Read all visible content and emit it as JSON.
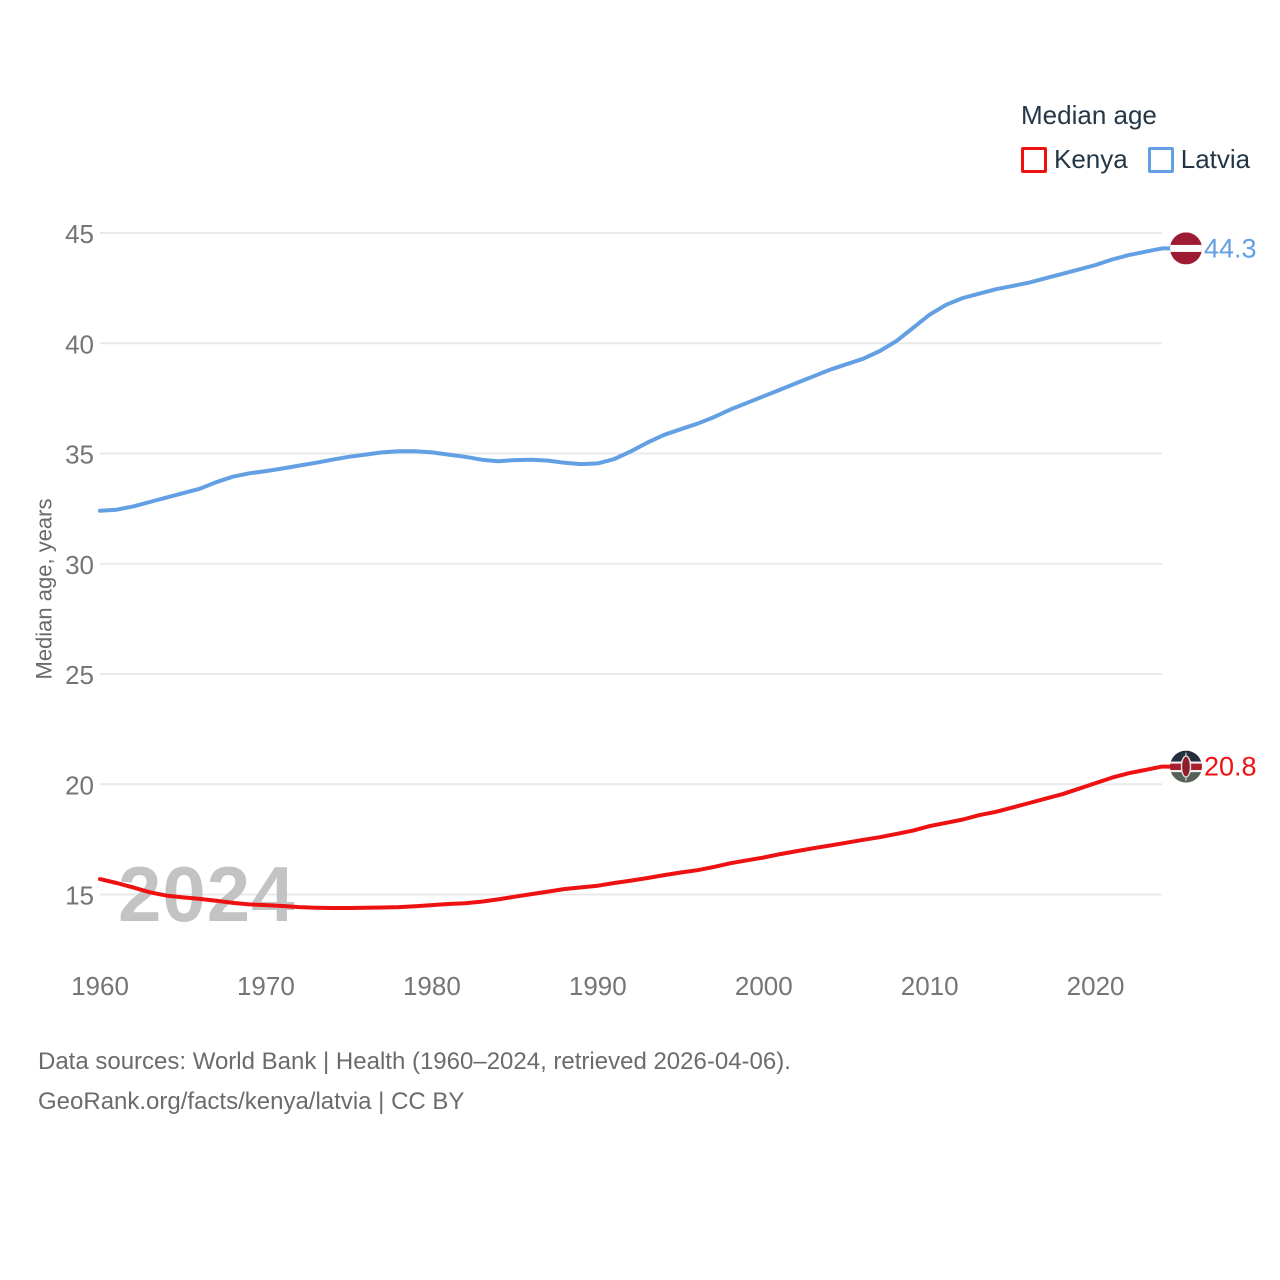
{
  "legend": {
    "title": "Median age",
    "items": [
      {
        "label": "Kenya",
        "color": "#ee1111"
      },
      {
        "label": "Latvia",
        "color": "#63a0e3"
      }
    ]
  },
  "chart_data": {
    "type": "line",
    "title": "Median age",
    "ylabel": "Median age, years",
    "xlabel": "",
    "grid": true,
    "legend_position": "top-right",
    "watermark": "2024",
    "ylim": [
      13,
      46.5
    ],
    "xlim": [
      1960,
      2024
    ],
    "y_ticks": [
      15,
      20,
      25,
      30,
      35,
      40,
      45
    ],
    "x_ticks": [
      1960,
      1970,
      1980,
      1990,
      2000,
      2010,
      2020
    ],
    "x": [
      1960,
      1961,
      1962,
      1963,
      1964,
      1965,
      1966,
      1967,
      1968,
      1969,
      1970,
      1971,
      1972,
      1973,
      1974,
      1975,
      1976,
      1977,
      1978,
      1979,
      1980,
      1981,
      1982,
      1983,
      1984,
      1985,
      1986,
      1987,
      1988,
      1989,
      1990,
      1991,
      1992,
      1993,
      1994,
      1995,
      1996,
      1997,
      1998,
      1999,
      2000,
      2001,
      2002,
      2003,
      2004,
      2005,
      2006,
      2007,
      2008,
      2009,
      2010,
      2011,
      2012,
      2013,
      2014,
      2015,
      2016,
      2017,
      2018,
      2019,
      2020,
      2021,
      2022,
      2023,
      2024
    ],
    "series": [
      {
        "name": "Kenya",
        "color": "#ee1111",
        "end_label": "20.8",
        "flag": "kenya",
        "values": [
          15.7,
          15.52,
          15.32,
          15.1,
          14.95,
          14.87,
          14.8,
          14.72,
          14.62,
          14.55,
          14.52,
          14.48,
          14.43,
          14.4,
          14.39,
          14.39,
          14.4,
          14.41,
          14.43,
          14.47,
          14.52,
          14.57,
          14.6,
          14.68,
          14.78,
          14.9,
          15.02,
          15.13,
          15.25,
          15.32,
          15.4,
          15.52,
          15.63,
          15.75,
          15.88,
          16.0,
          16.1,
          16.25,
          16.42,
          16.55,
          16.68,
          16.83,
          16.97,
          17.1,
          17.22,
          17.35,
          17.48,
          17.6,
          17.75,
          17.9,
          18.1,
          18.25,
          18.4,
          18.6,
          18.75,
          18.95,
          19.15,
          19.35,
          19.55,
          19.8,
          20.05,
          20.3,
          20.5,
          20.65,
          20.8
        ]
      },
      {
        "name": "Latvia",
        "color": "#63a0e3",
        "end_label": "44.3",
        "flag": "latvia",
        "values": [
          32.4,
          32.45,
          32.6,
          32.8,
          33.0,
          33.2,
          33.4,
          33.7,
          33.95,
          34.1,
          34.2,
          34.32,
          34.45,
          34.58,
          34.72,
          34.85,
          34.95,
          35.05,
          35.1,
          35.1,
          35.05,
          34.95,
          34.85,
          34.72,
          34.65,
          34.7,
          34.72,
          34.68,
          34.58,
          34.52,
          34.55,
          34.75,
          35.1,
          35.5,
          35.85,
          36.1,
          36.35,
          36.65,
          37.0,
          37.3,
          37.6,
          37.9,
          38.2,
          38.5,
          38.8,
          39.05,
          39.3,
          39.65,
          40.1,
          40.7,
          41.3,
          41.75,
          42.05,
          42.25,
          42.45,
          42.6,
          42.75,
          42.95,
          43.15,
          43.35,
          43.55,
          43.8,
          44.0,
          44.15,
          44.3
        ]
      }
    ],
    "colors": {
      "grid_line": "#e9e9e9",
      "tick_label": "#757575",
      "axis_label": "#6a6a6a",
      "watermark": "#c3c3c3",
      "legend_text": "#253746",
      "flag_latvia_maroon": "#9e1b34",
      "flag_latvia_white": "#fdfdfd",
      "flag_kenya_black": "#262f3e",
      "flag_kenya_red": "#a91f2d",
      "flag_kenya_green": "#566158",
      "flag_kenya_white": "#f1f1f1"
    }
  },
  "footer": {
    "line1": "Data sources: World Bank | Health (1960–2024, retrieved 2026-04-06).",
    "line2": "GeoRank.org/facts/kenya/latvia | CC BY"
  }
}
